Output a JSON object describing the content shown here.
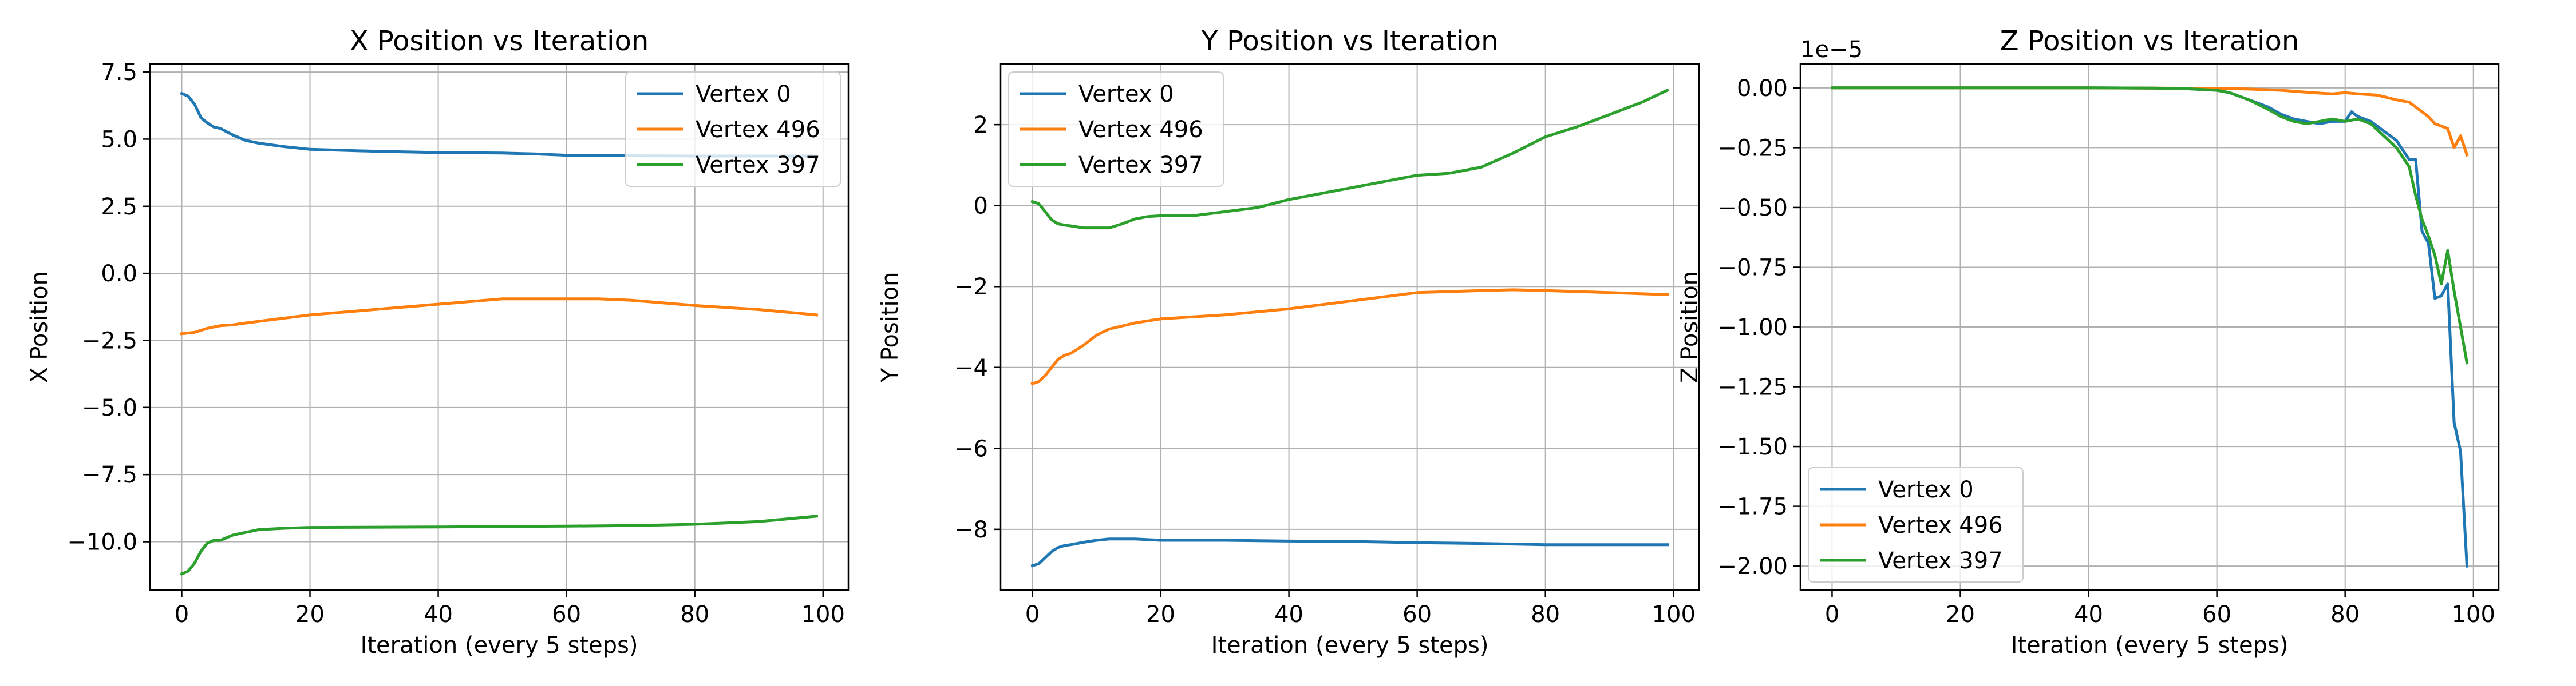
{
  "figure": {
    "background": "#ffffff"
  },
  "series_colors": [
    "#1f77b4",
    "#ff7f0e",
    "#2ca02c"
  ],
  "chart_data": [
    {
      "type": "line",
      "title": "X Position vs Iteration",
      "xlabel": "Iteration (every 5 steps)",
      "ylabel": "X Position",
      "xlim": [
        -4.95,
        103.95
      ],
      "ylim": [
        -11.8,
        7.8
      ],
      "xticks": [
        0,
        20,
        40,
        60,
        80,
        100
      ],
      "xtick_labels": [
        "0",
        "20",
        "40",
        "60",
        "80",
        "100"
      ],
      "yticks": [
        7.5,
        5.0,
        2.5,
        0.0,
        -2.5,
        -5.0,
        -7.5,
        -10.0
      ],
      "ytick_labels": [
        "7.5",
        "5.0",
        "2.5",
        "0.0",
        "−2.5",
        "−5.0",
        "−7.5",
        "−10.0"
      ],
      "offset_label": "",
      "grid": true,
      "legend": {
        "position": "upper right",
        "entries": [
          "Vertex 0",
          "Vertex 496",
          "Vertex 397"
        ]
      },
      "series": [
        {
          "name": "Vertex 0",
          "color": "#1f77b4",
          "points": [
            [
              0,
              6.7
            ],
            [
              1,
              6.6
            ],
            [
              2,
              6.3
            ],
            [
              3,
              5.8
            ],
            [
              4,
              5.6
            ],
            [
              5,
              5.45
            ],
            [
              6,
              5.4
            ],
            [
              8,
              5.15
            ],
            [
              10,
              4.95
            ],
            [
              12,
              4.85
            ],
            [
              16,
              4.72
            ],
            [
              20,
              4.62
            ],
            [
              30,
              4.55
            ],
            [
              40,
              4.5
            ],
            [
              50,
              4.48
            ],
            [
              55,
              4.45
            ],
            [
              60,
              4.4
            ],
            [
              70,
              4.38
            ],
            [
              80,
              4.37
            ],
            [
              90,
              4.37
            ],
            [
              99,
              4.37
            ]
          ]
        },
        {
          "name": "Vertex 496",
          "color": "#ff7f0e",
          "points": [
            [
              0,
              -2.25
            ],
            [
              2,
              -2.2
            ],
            [
              4,
              -2.05
            ],
            [
              6,
              -1.95
            ],
            [
              8,
              -1.92
            ],
            [
              10,
              -1.85
            ],
            [
              15,
              -1.7
            ],
            [
              20,
              -1.55
            ],
            [
              30,
              -1.35
            ],
            [
              40,
              -1.15
            ],
            [
              50,
              -0.95
            ],
            [
              60,
              -0.95
            ],
            [
              65,
              -0.95
            ],
            [
              70,
              -1.0
            ],
            [
              80,
              -1.2
            ],
            [
              90,
              -1.35
            ],
            [
              99,
              -1.55
            ]
          ]
        },
        {
          "name": "Vertex 397",
          "color": "#2ca02c",
          "points": [
            [
              0,
              -11.2
            ],
            [
              1,
              -11.1
            ],
            [
              2,
              -10.8
            ],
            [
              3,
              -10.35
            ],
            [
              4,
              -10.05
            ],
            [
              5,
              -9.95
            ],
            [
              6,
              -9.95
            ],
            [
              8,
              -9.75
            ],
            [
              10,
              -9.65
            ],
            [
              12,
              -9.55
            ],
            [
              16,
              -9.5
            ],
            [
              20,
              -9.47
            ],
            [
              40,
              -9.45
            ],
            [
              60,
              -9.42
            ],
            [
              70,
              -9.4
            ],
            [
              80,
              -9.35
            ],
            [
              90,
              -9.25
            ],
            [
              99,
              -9.05
            ]
          ]
        }
      ]
    },
    {
      "type": "line",
      "title": "Y Position vs Iteration",
      "xlabel": "Iteration (every 5 steps)",
      "ylabel": "Y Position",
      "xlim": [
        -4.95,
        103.95
      ],
      "ylim": [
        -9.5,
        3.5
      ],
      "xticks": [
        0,
        20,
        40,
        60,
        80,
        100
      ],
      "xtick_labels": [
        "0",
        "20",
        "40",
        "60",
        "80",
        "100"
      ],
      "yticks": [
        2,
        0,
        -2,
        -4,
        -6,
        -8
      ],
      "ytick_labels": [
        "2",
        "0",
        "−2",
        "−4",
        "−6",
        "−8"
      ],
      "offset_label": "",
      "grid": true,
      "legend": {
        "position": "upper left",
        "entries": [
          "Vertex 0",
          "Vertex 496",
          "Vertex 397"
        ]
      },
      "series": [
        {
          "name": "Vertex 0",
          "color": "#1f77b4",
          "points": [
            [
              0,
              -8.9
            ],
            [
              1,
              -8.85
            ],
            [
              2,
              -8.7
            ],
            [
              3,
              -8.55
            ],
            [
              4,
              -8.45
            ],
            [
              5,
              -8.4
            ],
            [
              6,
              -8.38
            ],
            [
              8,
              -8.32
            ],
            [
              10,
              -8.27
            ],
            [
              12,
              -8.24
            ],
            [
              16,
              -8.24
            ],
            [
              20,
              -8.27
            ],
            [
              30,
              -8.27
            ],
            [
              40,
              -8.29
            ],
            [
              50,
              -8.3
            ],
            [
              60,
              -8.33
            ],
            [
              70,
              -8.35
            ],
            [
              80,
              -8.38
            ],
            [
              90,
              -8.38
            ],
            [
              99,
              -8.38
            ]
          ]
        },
        {
          "name": "Vertex 496",
          "color": "#ff7f0e",
          "points": [
            [
              0,
              -4.4
            ],
            [
              1,
              -4.35
            ],
            [
              2,
              -4.2
            ],
            [
              3,
              -4.0
            ],
            [
              4,
              -3.8
            ],
            [
              5,
              -3.7
            ],
            [
              6,
              -3.65
            ],
            [
              8,
              -3.45
            ],
            [
              10,
              -3.2
            ],
            [
              12,
              -3.05
            ],
            [
              16,
              -2.9
            ],
            [
              20,
              -2.8
            ],
            [
              30,
              -2.7
            ],
            [
              40,
              -2.55
            ],
            [
              50,
              -2.35
            ],
            [
              60,
              -2.15
            ],
            [
              70,
              -2.1
            ],
            [
              75,
              -2.08
            ],
            [
              80,
              -2.1
            ],
            [
              90,
              -2.15
            ],
            [
              99,
              -2.2
            ]
          ]
        },
        {
          "name": "Vertex 397",
          "color": "#2ca02c",
          "points": [
            [
              0,
              0.1
            ],
            [
              1,
              0.05
            ],
            [
              2,
              -0.15
            ],
            [
              3,
              -0.35
            ],
            [
              4,
              -0.45
            ],
            [
              5,
              -0.48
            ],
            [
              6,
              -0.5
            ],
            [
              8,
              -0.55
            ],
            [
              10,
              -0.55
            ],
            [
              12,
              -0.55
            ],
            [
              14,
              -0.45
            ],
            [
              16,
              -0.33
            ],
            [
              18,
              -0.27
            ],
            [
              20,
              -0.25
            ],
            [
              25,
              -0.25
            ],
            [
              30,
              -0.15
            ],
            [
              35,
              -0.05
            ],
            [
              40,
              0.15
            ],
            [
              45,
              0.3
            ],
            [
              50,
              0.45
            ],
            [
              55,
              0.6
            ],
            [
              60,
              0.75
            ],
            [
              65,
              0.8
            ],
            [
              70,
              0.95
            ],
            [
              75,
              1.3
            ],
            [
              80,
              1.7
            ],
            [
              85,
              1.95
            ],
            [
              90,
              2.25
            ],
            [
              95,
              2.55
            ],
            [
              99,
              2.85
            ]
          ]
        }
      ]
    },
    {
      "type": "line",
      "title": "Z Position vs Iteration",
      "xlabel": "Iteration (every 5 steps)",
      "ylabel": "Z Position",
      "xlim": [
        -4.95,
        103.95
      ],
      "ylim": [
        -2.1e-05,
        1e-06
      ],
      "xticks": [
        0,
        20,
        40,
        60,
        80,
        100
      ],
      "xtick_labels": [
        "0",
        "20",
        "40",
        "60",
        "80",
        "100"
      ],
      "yticks": [
        0.0,
        -2.5e-06,
        -5e-06,
        -7.5e-06,
        -1e-05,
        -1.25e-05,
        -1.5e-05,
        -1.75e-05,
        -2e-05
      ],
      "ytick_labels": [
        "0.00",
        "−0.25",
        "−0.50",
        "−0.75",
        "−1.00",
        "−1.25",
        "−1.50",
        "−1.75",
        "−2.00"
      ],
      "offset_label": "1e−5",
      "grid": true,
      "legend": {
        "position": "lower left",
        "entries": [
          "Vertex 0",
          "Vertex 496",
          "Vertex 397"
        ]
      },
      "series": [
        {
          "name": "Vertex 0",
          "color": "#1f77b4",
          "points": [
            [
              0,
              0.0
            ],
            [
              20,
              0.0
            ],
            [
              40,
              0.0
            ],
            [
              50,
              -1e-08
            ],
            [
              55,
              -3e-08
            ],
            [
              60,
              -1e-07
            ],
            [
              62,
              -2e-07
            ],
            [
              65,
              -5e-07
            ],
            [
              68,
              -8e-07
            ],
            [
              70,
              -1.1e-06
            ],
            [
              72,
              -1.3e-06
            ],
            [
              74,
              -1.4e-06
            ],
            [
              76,
              -1.5e-06
            ],
            [
              78,
              -1.4e-06
            ],
            [
              80,
              -1.4e-06
            ],
            [
              81,
              -1e-06
            ],
            [
              82,
              -1.2e-06
            ],
            [
              84,
              -1.4e-06
            ],
            [
              86,
              -1.8e-06
            ],
            [
              88,
              -2.2e-06
            ],
            [
              90,
              -3e-06
            ],
            [
              91,
              -3e-06
            ],
            [
              92,
              -6e-06
            ],
            [
              93,
              -6.5e-06
            ],
            [
              94,
              -8.8e-06
            ],
            [
              95,
              -8.7e-06
            ],
            [
              96,
              -8.2e-06
            ],
            [
              97,
              -1.4e-05
            ],
            [
              98,
              -1.52e-05
            ],
            [
              99,
              -2e-05
            ]
          ]
        },
        {
          "name": "Vertex 496",
          "color": "#ff7f0e",
          "points": [
            [
              0,
              0.0
            ],
            [
              40,
              0.0
            ],
            [
              60,
              -2e-08
            ],
            [
              65,
              -5e-08
            ],
            [
              70,
              -1e-07
            ],
            [
              75,
              -2e-07
            ],
            [
              78,
              -2.5e-07
            ],
            [
              80,
              -2e-07
            ],
            [
              82,
              -2.5e-07
            ],
            [
              85,
              -3e-07
            ],
            [
              88,
              -5e-07
            ],
            [
              90,
              -6e-07
            ],
            [
              91,
              -8e-07
            ],
            [
              92,
              -1e-06
            ],
            [
              93,
              -1.2e-06
            ],
            [
              94,
              -1.5e-06
            ],
            [
              95,
              -1.6e-06
            ],
            [
              96,
              -1.7e-06
            ],
            [
              97,
              -2.5e-06
            ],
            [
              98,
              -2e-06
            ],
            [
              99,
              -2.8e-06
            ]
          ]
        },
        {
          "name": "Vertex 397",
          "color": "#2ca02c",
          "points": [
            [
              0,
              0.0
            ],
            [
              20,
              0.0
            ],
            [
              40,
              0.0
            ],
            [
              50,
              -1e-08
            ],
            [
              55,
              -3e-08
            ],
            [
              60,
              -1e-07
            ],
            [
              62,
              -2e-07
            ],
            [
              65,
              -5e-07
            ],
            [
              68,
              -9e-07
            ],
            [
              70,
              -1.2e-06
            ],
            [
              72,
              -1.4e-06
            ],
            [
              74,
              -1.5e-06
            ],
            [
              76,
              -1.4e-06
            ],
            [
              78,
              -1.3e-06
            ],
            [
              80,
              -1.4e-06
            ],
            [
              82,
              -1.3e-06
            ],
            [
              84,
              -1.5e-06
            ],
            [
              86,
              -2e-06
            ],
            [
              88,
              -2.5e-06
            ],
            [
              90,
              -3.3e-06
            ],
            [
              91,
              -4.5e-06
            ],
            [
              92,
              -5.5e-06
            ],
            [
              93,
              -6.2e-06
            ],
            [
              94,
              -7e-06
            ],
            [
              95,
              -8.2e-06
            ],
            [
              96,
              -6.8e-06
            ],
            [
              97,
              -8.5e-06
            ],
            [
              98,
              -1e-05
            ],
            [
              99,
              -1.15e-05
            ]
          ]
        }
      ]
    }
  ]
}
